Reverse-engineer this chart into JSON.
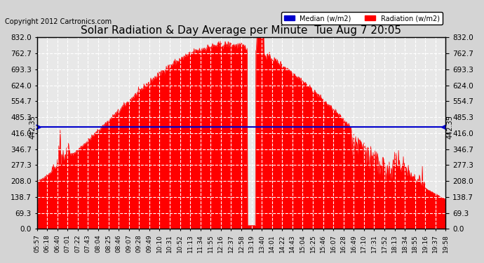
{
  "title": "Solar Radiation & Day Average per Minute  Tue Aug 7 20:05",
  "copyright": "Copyright 2012 Cartronics.com",
  "ylabel_right": "Radiation (w/m2)",
  "median_value": 442.35,
  "y_max": 832.0,
  "y_ticks": [
    0.0,
    69.3,
    138.7,
    208.0,
    277.3,
    346.7,
    416.0,
    485.3,
    554.7,
    624.0,
    693.3,
    762.7,
    832.0
  ],
  "background_color": "#e8e8e8",
  "fill_color": "#ff0000",
  "median_line_color": "#0000cc",
  "grid_color": "#ffffff",
  "x_labels": [
    "05:57",
    "06:18",
    "06:40",
    "07:01",
    "07:22",
    "07:43",
    "08:04",
    "08:25",
    "08:46",
    "09:07",
    "09:28",
    "09:49",
    "10:10",
    "10:31",
    "10:52",
    "11:13",
    "11:34",
    "11:55",
    "12:16",
    "12:37",
    "12:58",
    "13:19",
    "13:40",
    "14:01",
    "14:22",
    "14:43",
    "15:04",
    "15:25",
    "15:46",
    "16:07",
    "16:28",
    "16:49",
    "17:10",
    "17:31",
    "17:52",
    "18:13",
    "18:34",
    "18:55",
    "19:16",
    "19:37",
    "19:58"
  ],
  "n_points": 841
}
